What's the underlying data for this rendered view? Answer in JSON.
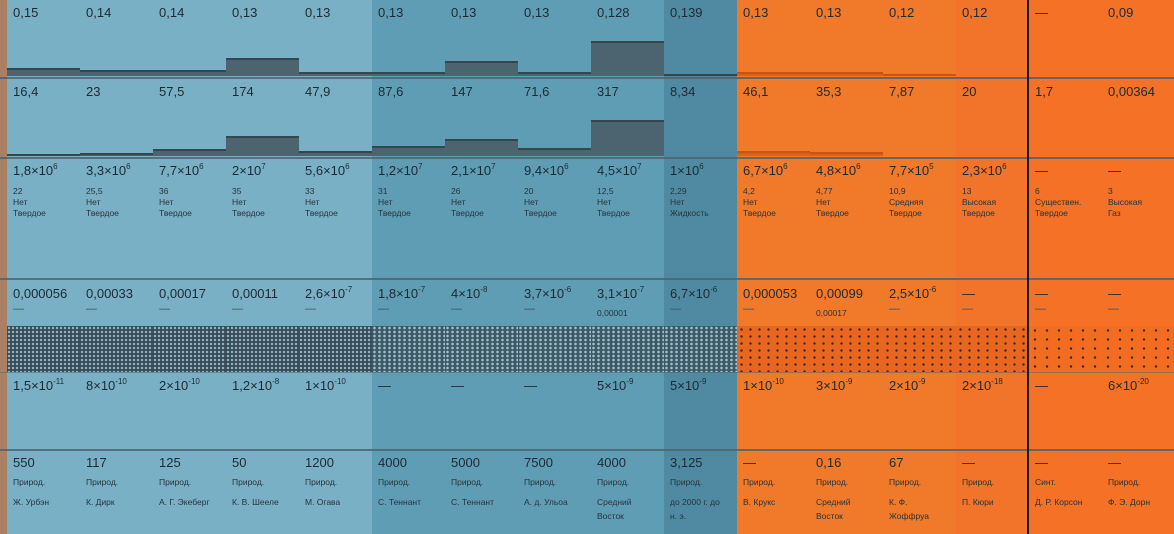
{
  "columns": [
    {
      "bg": "#7ab0c5",
      "group": "blue",
      "r1": "0,15",
      "r2": "16,4",
      "r3": "1,8×10",
      "r3s": "6",
      "n": "22",
      "o1": "Нет",
      "o2": "Твердое",
      "r4": "0,000056",
      "r4s": "",
      "r5": "—",
      "r5b": "",
      "pat": "pat-a",
      "r6": "1,5×10",
      "r6s": "-11",
      "r7": "550",
      "p1": "Природ.",
      "p2": "Ж. Урбэн",
      "p3": "",
      "bar1": 0.15,
      "bar2": 16.4
    },
    {
      "bg": "#7ab0c5",
      "group": "blue",
      "r1": "0,14",
      "r2": "23",
      "r3": "3,3×10",
      "r3s": "6",
      "n": "25,5",
      "o1": "Нет",
      "o2": "Твердое",
      "r4": "0,00033",
      "r4s": "",
      "r5": "—",
      "r5b": "",
      "pat": "pat-a",
      "r6": "8×10",
      "r6s": "-10",
      "r7": "117",
      "p1": "Природ.",
      "p2": "К. Дирк",
      "p3": "",
      "bar1": 0.14,
      "bar2": 23
    },
    {
      "bg": "#7ab0c5",
      "group": "blue",
      "r1": "0,14",
      "r2": "57,5",
      "r3": "7,7×10",
      "r3s": "6",
      "n": "36",
      "o1": "Нет",
      "o2": "Твердое",
      "r4": "0,00017",
      "r4s": "",
      "r5": "—",
      "r5b": "",
      "pat": "pat-a",
      "r6": "2×10",
      "r6s": "-10",
      "r7": "125",
      "p1": "Природ.",
      "p2": "А. Г. Экеберг",
      "p3": "",
      "bar1": 0.14,
      "bar2": 57.5
    },
    {
      "bg": "#7ab0c5",
      "group": "blue",
      "r1": "0,13",
      "r2": "174",
      "r3": "2×10",
      "r3s": "7",
      "n": "35",
      "o1": "Нет",
      "o2": "Твердое",
      "r4": "0,00011",
      "r4s": "",
      "r5": "—",
      "r5b": "",
      "pat": "pat-a",
      "r6": "1,2×10",
      "r6s": "-8",
      "r7": "50",
      "p1": "Природ.",
      "p2": "К. В. Шееле",
      "p3": "",
      "bar1": 0.13,
      "bar2": 174
    },
    {
      "bg": "#7ab0c5",
      "group": "blue",
      "r1": "0,13",
      "r2": "47,9",
      "r3": "5,6×10",
      "r3s": "6",
      "n": "33",
      "o1": "Нет",
      "o2": "Твердое",
      "r4": "2,6×10",
      "r4s": "-7",
      "r5": "—",
      "r5b": "",
      "pat": "pat-a",
      "r6": "1×10",
      "r6s": "-10",
      "r7": "1200",
      "p1": "Природ.",
      "p2": "М. Огава",
      "p3": "",
      "bar1": 0.13,
      "bar2": 47.9
    },
    {
      "bg": "#5f9db5",
      "group": "blue",
      "r1": "0,13",
      "r2": "87,6",
      "r3": "1,2×10",
      "r3s": "7",
      "n": "31",
      "o1": "Нет",
      "o2": "Твердое",
      "r4": "1,8×10",
      "r4s": "-7",
      "r5": "—",
      "r5b": "",
      "pat": "pat-b",
      "r6": "—",
      "r6s": "",
      "r7": "4000",
      "p1": "Природ.",
      "p2": "С. Теннант",
      "p3": "",
      "bar1": 0.13,
      "bar2": 87.6
    },
    {
      "bg": "#5f9db5",
      "group": "blue",
      "r1": "0,13",
      "r2": "147",
      "r3": "2,1×10",
      "r3s": "7",
      "n": "26",
      "o1": "Нет",
      "o2": "Твердое",
      "r4": "4×10",
      "r4s": "-8",
      "r5": "—",
      "r5b": "",
      "pat": "pat-b",
      "r6": "—",
      "r6s": "",
      "r7": "5000",
      "p1": "Природ.",
      "p2": "С. Теннант",
      "p3": "",
      "bar1": 0.13,
      "bar2": 147
    },
    {
      "bg": "#5f9db5",
      "group": "blue",
      "r1": "0,13",
      "r2": "71,6",
      "r3": "9,4×10",
      "r3s": "6",
      "n": "20",
      "o1": "Нет",
      "o2": "Твердое",
      "r4": "3,7×10",
      "r4s": "-6",
      "r5": "—",
      "r5b": "",
      "pat": "pat-b",
      "r6": "—",
      "r6s": "",
      "r7": "7500",
      "p1": "Природ.",
      "p2": "А. д. Ульоа",
      "p3": "",
      "bar1": 0.13,
      "bar2": 71.6
    },
    {
      "bg": "#5f9db5",
      "group": "blue",
      "r1": "0,128",
      "r2": "317",
      "r3": "4,5×10",
      "r3s": "7",
      "n": "12,5",
      "o1": "Нет",
      "o2": "Твердое",
      "r4": "3,1×10",
      "r4s": "-7",
      "r5": "",
      "r5b": "0,00001",
      "pat": "pat-b",
      "r6": "5×10",
      "r6s": "-9",
      "r7": "4000",
      "p1": "Природ.",
      "p2": "Средний",
      "p3": "Восток",
      "bar1": 0.128,
      "bar2": 317
    },
    {
      "bg": "#4f8aa2",
      "group": "blue",
      "r1": "0,139",
      "r2": "8,34",
      "r3": "1×10",
      "r3s": "6",
      "n": "2,29",
      "o1": "Нет",
      "o2": "Жидкость",
      "r4": "6,7×10",
      "r4s": "-6",
      "r5": "—",
      "r5b": "",
      "pat": "pat-b",
      "r6": "5×10",
      "r6s": "-9",
      "r7": "3,125",
      "p1": "Природ.",
      "p2": "до 2000 г. до",
      "p3": "н. э.",
      "bar1": 0,
      "bar2": 0
    },
    {
      "bg": "#f07a2a",
      "group": "orange",
      "r1": "0,13",
      "r2": "46,1",
      "r3": "6,7×10",
      "r3s": "6",
      "n": "4,2",
      "o1": "Нет",
      "o2": "Твердое",
      "r4": "0,000053",
      "r4s": "",
      "r5": "—",
      "r5b": "",
      "pat": "pat-c",
      "r6": "1×10",
      "r6s": "-10",
      "r7": "—",
      "p1": "Природ.",
      "p2": "В. Крукс",
      "p3": "",
      "bar1": 0.13,
      "bar2": 46.1
    },
    {
      "bg": "#f07a2a",
      "group": "orange",
      "r1": "0,13",
      "r2": "35,3",
      "r3": "4,8×10",
      "r3s": "6",
      "n": "4,77",
      "o1": "Нет",
      "o2": "Твердое",
      "r4": "0,00099",
      "r4s": "",
      "r5": "",
      "r5b": "0,00017",
      "pat": "pat-c",
      "r6": "3×10",
      "r6s": "-9",
      "r7": "0,16",
      "p1": "Природ.",
      "p2": "Средний",
      "p3": "Восток",
      "bar1": 0.13,
      "bar2": 35.3
    },
    {
      "bg": "#f07a2a",
      "group": "orange",
      "r1": "0,12",
      "r2": "7,87",
      "r3": "7,7×10",
      "r3s": "5",
      "n": "10,9",
      "o1": "Средняя",
      "o2": "Твердое",
      "r4": "2,5×10",
      "r4s": "-6",
      "r5": "—",
      "r5b": "",
      "pat": "pat-c",
      "r6": "2×10",
      "r6s": "-9",
      "r7": "67",
      "p1": "Природ.",
      "p2": "К. Ф.",
      "p3": "Жоффруа",
      "bar1": 0,
      "bar2": 0
    },
    {
      "bg": "#f2742a",
      "group": "orange",
      "r1": "0,12",
      "r2": "20",
      "r3": "2,3×10",
      "r3s": "6",
      "n": "13",
      "o1": "Высокая",
      "o2": "Твердое",
      "r4": "—",
      "r4s": "",
      "r5": "—",
      "r5b": "",
      "pat": "pat-c",
      "r6": "2×10",
      "r6s": "-18",
      "r7": "—",
      "p1": "Природ.",
      "p2": "П. Кюри",
      "p3": "",
      "bar1": 0,
      "bar2": 0
    },
    {
      "bg": "#f47126",
      "group": "orange",
      "r1": "—",
      "r2": "1,7",
      "r3": "—",
      "r3s": "",
      "n": "6",
      "o1": "Существен.",
      "o2": "Твердое",
      "r4": "—",
      "r4s": "",
      "r5": "—",
      "r5b": "",
      "pat": "pat-c2",
      "r6": "—",
      "r6s": "",
      "r7": "—",
      "p1": "Синт.",
      "p2": "Д. Р. Корсон",
      "p3": "",
      "bar1": 0,
      "bar2": 0
    },
    {
      "bg": "#f47126",
      "group": "orange",
      "r1": "0,09",
      "r2": "0,00364",
      "r3": "—",
      "r3s": "",
      "n": "3",
      "o1": "Высокая",
      "o2": "Газ",
      "r4": "—",
      "r4s": "",
      "r5": "—",
      "r5b": "",
      "pat": "pat-c2",
      "r6": "6×10",
      "r6s": "-20",
      "r7": "—",
      "p1": "Природ.",
      "p2": "Ф. Э. Дорн",
      "p3": "",
      "bar1": 0,
      "bar2": 0
    }
  ]
}
